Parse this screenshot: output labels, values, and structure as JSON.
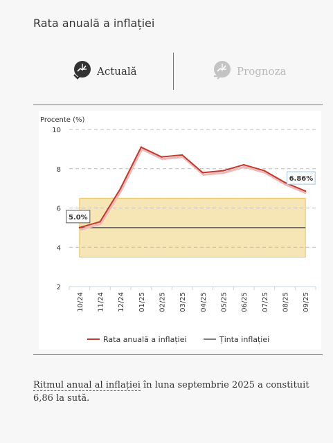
{
  "page": {
    "title": "Rata anuală a inflației"
  },
  "tabs": [
    {
      "label": "Actuală",
      "icon": "clock-chart-icon",
      "active": true
    },
    {
      "label": "Prognoza",
      "icon": "clock-chart-forward-icon",
      "active": false
    }
  ],
  "footer": {
    "link_text": "Ritmul anual al inflației",
    "rest_text": " în luna septembrie 2025 a constituit 6,86 la sută."
  },
  "colors": {
    "series": "#c0392b",
    "series_shadow": "#f0b7b7",
    "target": "#555555",
    "band_fill": "#f7e6b5",
    "band_edge": "#e8c45a",
    "grid": "#bbbbbb"
  },
  "chart_data": {
    "type": "line",
    "ylabel": "Procente (%)",
    "ylim": [
      2,
      10
    ],
    "yticks": [
      2,
      4,
      6,
      8,
      10
    ],
    "grid": true,
    "legend_position": "bottom",
    "categories": [
      "10/24",
      "11/24",
      "12/24",
      "01/25",
      "02/25",
      "03/25",
      "04/25",
      "05/25",
      "06/25",
      "07/25",
      "08/25",
      "09/25"
    ],
    "series": [
      {
        "name": "Rata anuală a inflației",
        "values": [
          5.0,
          5.3,
          7.0,
          9.1,
          8.6,
          8.7,
          7.8,
          7.9,
          8.2,
          7.9,
          7.3,
          6.86
        ]
      },
      {
        "name": "Ținta inflației",
        "values": [
          5.0,
          5.0,
          5.0,
          5.0,
          5.0,
          5.0,
          5.0,
          5.0,
          5.0,
          5.0,
          5.0,
          5.0
        ]
      }
    ],
    "target_band": [
      3.5,
      6.5
    ],
    "annotations": [
      {
        "category": "10/24",
        "label": "5.0%"
      },
      {
        "category": "09/25",
        "label": "6.86%"
      }
    ]
  }
}
